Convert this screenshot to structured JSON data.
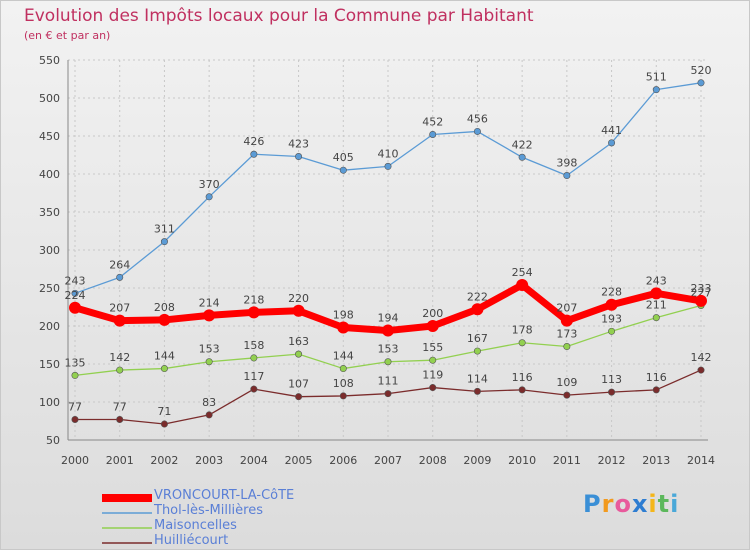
{
  "title": "Evolution des Impôts locaux pour la Commune par Habitant",
  "subtitle": "(en € et par an)",
  "logo_text": "Proxiti",
  "chart_data": {
    "type": "line",
    "title": "Evolution des Impôts locaux pour la Commune par Habitant",
    "subtitle": "(en € et par an)",
    "xlabel": "",
    "ylabel": "",
    "categories": [
      "2000",
      "2001",
      "2002",
      "2003",
      "2004",
      "2005",
      "2006",
      "2007",
      "2008",
      "2009",
      "2010",
      "2011",
      "2012",
      "2013",
      "2014"
    ],
    "ylim": [
      50,
      550
    ],
    "yticks": [
      50,
      100,
      150,
      200,
      250,
      300,
      350,
      400,
      450,
      500,
      550
    ],
    "grid": "dashed vertical and horizontal",
    "legend_placement": "bottom-left",
    "series": [
      {
        "name": "VRONCOURT-LA-CôTE",
        "color": "#ff0000",
        "values": [
          224,
          207,
          208,
          214,
          218,
          220,
          198,
          194,
          200,
          222,
          254,
          207,
          228,
          243,
          233
        ]
      },
      {
        "name": "Thol-lès-Millières",
        "color": "#5b9bd5",
        "values": [
          243,
          264,
          311,
          370,
          426,
          423,
          405,
          410,
          452,
          456,
          422,
          398,
          441,
          511,
          520
        ]
      },
      {
        "name": "Maisoncelles",
        "color": "#92d050",
        "values": [
          135,
          142,
          144,
          153,
          158,
          163,
          144,
          153,
          155,
          167,
          178,
          173,
          193,
          211,
          227
        ]
      },
      {
        "name": "Huilliécourt",
        "color": "#7b2c2c",
        "values": [
          77,
          77,
          71,
          83,
          117,
          107,
          108,
          111,
          119,
          114,
          116,
          109,
          113,
          116,
          142
        ]
      }
    ]
  }
}
